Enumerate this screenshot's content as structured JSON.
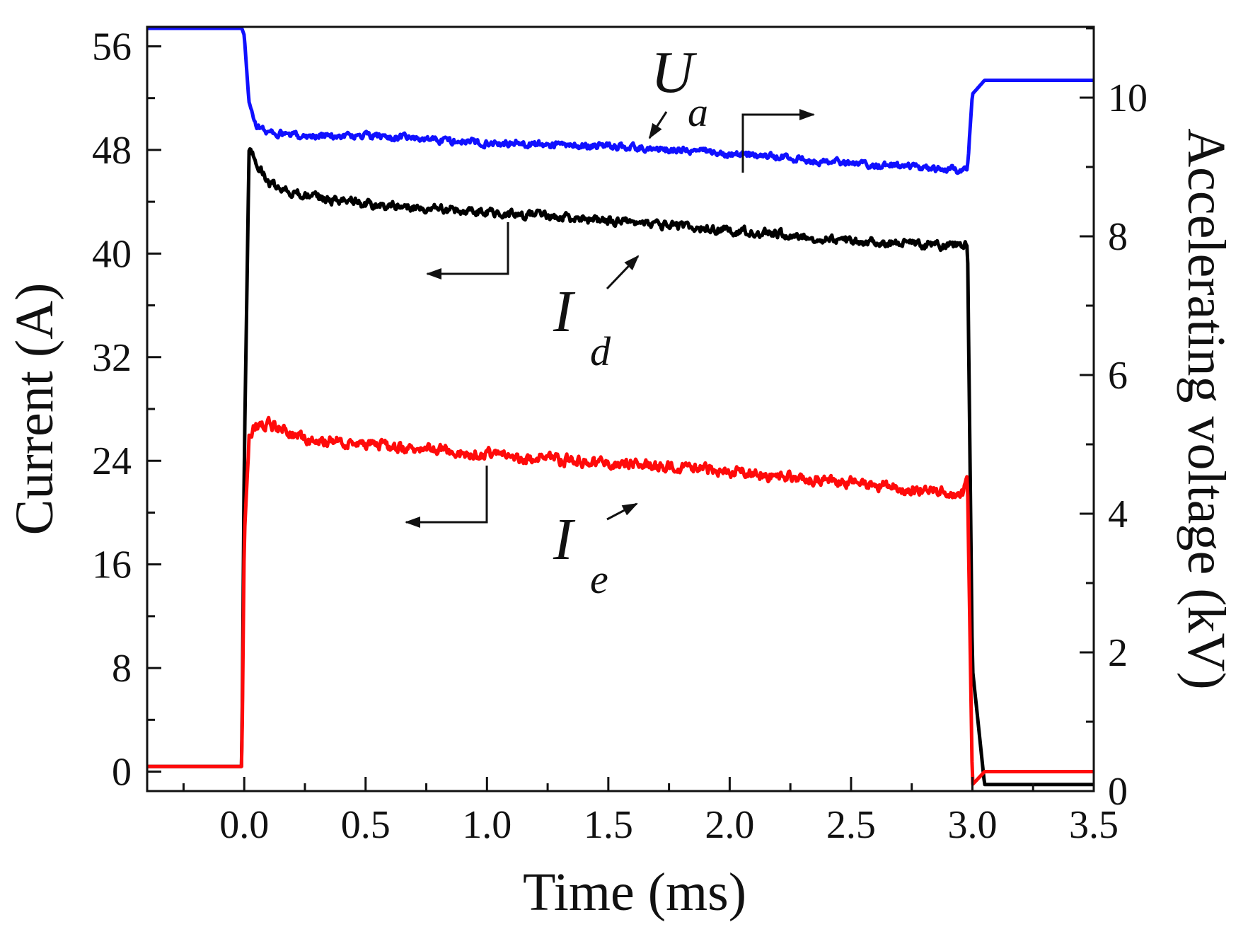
{
  "chart_data": {
    "type": "line",
    "title": "",
    "xlabel": "Time (ms)",
    "ylabel": "Current (A)",
    "y2label": "Accelerating voltage (kV)",
    "xlim": [
      -0.4,
      3.5
    ],
    "ylim": [
      -1.5,
      57.5
    ],
    "y2lim": [
      0,
      11.02
    ],
    "x_ticks": [
      "0.0",
      "0.5",
      "1.0",
      "1.5",
      "2.0",
      "2.5",
      "3.0",
      "3.5"
    ],
    "x_tick_values": [
      0,
      0.5,
      1.0,
      1.5,
      2.0,
      2.5,
      3.0,
      3.5
    ],
    "y_ticks": [
      "0",
      "8",
      "16",
      "24",
      "32",
      "40",
      "48",
      "56"
    ],
    "y_tick_values": [
      0,
      8,
      16,
      24,
      32,
      40,
      48,
      56
    ],
    "y2_ticks": [
      "0",
      "2",
      "4",
      "6",
      "8",
      "10"
    ],
    "y2_tick_values": [
      0,
      2,
      4,
      6,
      8,
      10
    ],
    "series": [
      {
        "name": "U",
        "subscript": "a",
        "axis": "right",
        "color": "#1010ff",
        "noise": 0.09,
        "x": [
          -0.4,
          -0.01,
          0.0,
          0.02,
          0.05,
          0.1,
          0.2,
          0.5,
          1.0,
          1.5,
          2.0,
          2.5,
          2.96,
          2.98,
          3.0,
          3.05,
          3.5
        ],
        "y": [
          11.0,
          11.0,
          10.9,
          9.9,
          9.6,
          9.5,
          9.45,
          9.45,
          9.35,
          9.3,
          9.2,
          9.05,
          8.95,
          9.0,
          10.05,
          10.25,
          10.25
        ]
      },
      {
        "name": "I",
        "subscript": "d",
        "axis": "left",
        "color": "#000000",
        "noise": 0.6,
        "x": [
          -0.4,
          -0.01,
          0.0,
          0.02,
          0.05,
          0.1,
          0.2,
          0.3,
          0.5,
          1.0,
          1.5,
          2.0,
          2.5,
          2.96,
          2.98,
          3.0,
          3.05,
          3.5
        ],
        "y": [
          0.4,
          0.4,
          24.0,
          48.0,
          47.0,
          45.5,
          44.7,
          44.3,
          43.8,
          43.2,
          42.5,
          41.8,
          41.0,
          40.5,
          41.0,
          8.0,
          -1.0,
          -1.0
        ]
      },
      {
        "name": "I",
        "subscript": "e",
        "axis": "left",
        "color": "#ff0a0a",
        "noise": 0.75,
        "x": [
          -0.4,
          -0.01,
          0.0,
          0.02,
          0.05,
          0.1,
          0.15,
          0.25,
          0.5,
          1.0,
          1.5,
          2.0,
          2.5,
          2.96,
          2.98,
          3.0,
          3.05,
          3.5
        ],
        "y": [
          0.4,
          0.4,
          18.0,
          25.8,
          26.8,
          26.8,
          26.5,
          25.6,
          25.3,
          24.5,
          23.8,
          23.2,
          22.3,
          21.5,
          22.5,
          -1.0,
          0.0,
          0.0
        ]
      }
    ],
    "annotations": [
      {
        "label": "U",
        "subscript": "a",
        "arrow_to": "right axis"
      },
      {
        "label": "I",
        "subscript": "d",
        "arrow_to": "left axis"
      },
      {
        "label": "I",
        "subscript": "e",
        "arrow_to": "left axis"
      }
    ]
  }
}
